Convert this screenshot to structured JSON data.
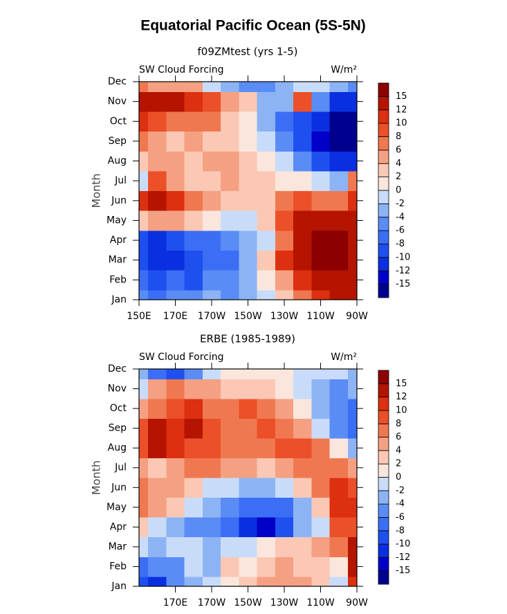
{
  "title": "Equatorial Pacific Ocean (5S-5N)",
  "chart_data": [
    {
      "type": "contour",
      "title": "f09ZMtest (yrs 1-5)",
      "left_label": "SW Cloud Forcing",
      "right_label": "W/m²",
      "y_label": "Month",
      "categories": [
        "Jan",
        "Feb",
        "Mar",
        "Apr",
        "May",
        "Jun",
        "Jul",
        "Aug",
        "Sep",
        "Oct",
        "Nov",
        "Dec"
      ],
      "x": [
        150,
        160,
        170,
        180,
        190,
        200,
        210,
        220,
        230,
        240,
        250,
        260,
        270
      ],
      "xlim": [
        150,
        270
      ],
      "xticks": [
        {
          "value": 150,
          "label": "150E"
        },
        {
          "value": 170,
          "label": "170E"
        },
        {
          "value": 190,
          "label": "170W"
        },
        {
          "value": 210,
          "label": "150W"
        },
        {
          "value": 230,
          "label": "130W"
        },
        {
          "value": 250,
          "label": "110W"
        },
        {
          "value": 270,
          "label": "90W"
        }
      ],
      "levels": [
        -15,
        -12,
        -10,
        -8,
        -6,
        -4,
        -2,
        0,
        2,
        4,
        6,
        8,
        10,
        12,
        15
      ],
      "colors": [
        "#00008f",
        "#0000c8",
        "#0a2fe0",
        "#1e50f0",
        "#3c6ef5",
        "#5a8cf5",
        "#8cb4f5",
        "#c8dcfa",
        "#fae6dc",
        "#fac8b4",
        "#f5a082",
        "#f07850",
        "#eb5028",
        "#dc3010",
        "#b41400",
        "#8c0000"
      ],
      "z": [
        [
          -6,
          -8,
          -6,
          -6,
          -4,
          -6,
          -4,
          -2,
          2,
          6,
          10,
          12,
          12
        ],
        [
          -8,
          -10,
          -8,
          -10,
          -6,
          -6,
          -4,
          0,
          4,
          10,
          12,
          14,
          14
        ],
        [
          -10,
          -12,
          -12,
          -10,
          -8,
          -8,
          -4,
          2,
          10,
          14,
          16,
          16,
          14
        ],
        [
          -10,
          -12,
          -10,
          -8,
          -8,
          -6,
          -4,
          -2,
          6,
          14,
          16,
          16,
          14
        ],
        [
          2,
          4,
          4,
          2,
          0,
          -2,
          -2,
          2,
          8,
          12,
          14,
          14,
          12
        ],
        [
          10,
          14,
          10,
          6,
          4,
          3,
          3,
          3,
          6,
          8,
          6,
          6,
          10
        ],
        [
          -2,
          8,
          4,
          3,
          3,
          4,
          3,
          2,
          1,
          0,
          -2,
          -4,
          6
        ],
        [
          3,
          5,
          4,
          3,
          4,
          4,
          2,
          0,
          -2,
          -6,
          -10,
          -12,
          -12
        ],
        [
          6,
          5,
          3,
          4,
          3,
          3,
          1,
          -2,
          -6,
          -10,
          -14,
          -16,
          -16
        ],
        [
          10,
          8,
          6,
          6,
          6,
          2,
          0,
          -4,
          -8,
          -10,
          -12,
          -16,
          -16
        ],
        [
          14,
          12,
          12,
          10,
          8,
          4,
          2,
          -4,
          -4,
          8,
          -6,
          -12,
          -12
        ],
        [
          6,
          4,
          4,
          4,
          -2,
          -4,
          -6,
          -6,
          -4,
          -2,
          -2,
          -4,
          -6
        ]
      ]
    },
    {
      "type": "contour",
      "title": "ERBE (1985-1989)",
      "left_label": "SW Cloud Forcing",
      "right_label": "W/m²",
      "y_label": "Month",
      "categories": [
        "Jan",
        "Feb",
        "Mar",
        "Apr",
        "May",
        "Jun",
        "Jul",
        "Aug",
        "Sep",
        "Oct",
        "Nov",
        "Dec"
      ],
      "x": [
        150,
        160,
        170,
        180,
        190,
        200,
        210,
        220,
        230,
        240,
        250,
        260,
        270
      ],
      "xlim": [
        150,
        270
      ],
      "xticks": [
        {
          "value": 170,
          "label": "170E"
        },
        {
          "value": 190,
          "label": "170W"
        },
        {
          "value": 210,
          "label": "150W"
        },
        {
          "value": 230,
          "label": "130W"
        },
        {
          "value": 250,
          "label": "110W"
        },
        {
          "value": 270,
          "label": "90W"
        }
      ],
      "levels": [
        -15,
        -12,
        -10,
        -8,
        -6,
        -4,
        -2,
        0,
        2,
        4,
        6,
        8,
        10,
        12,
        15
      ],
      "colors": [
        "#00008f",
        "#0000c8",
        "#0a2fe0",
        "#1e50f0",
        "#3c6ef5",
        "#5a8cf5",
        "#8cb4f5",
        "#c8dcfa",
        "#fae6dc",
        "#fac8b4",
        "#f5a082",
        "#f07850",
        "#eb5028",
        "#dc3010",
        "#b41400",
        "#8c0000"
      ],
      "z": [
        [
          -10,
          -12,
          -6,
          -4,
          -2,
          0,
          2,
          4,
          4,
          4,
          2,
          -2,
          10
        ],
        [
          -8,
          -6,
          -6,
          -2,
          -4,
          2,
          0,
          2,
          4,
          2,
          2,
          0,
          12
        ],
        [
          -2,
          -4,
          -2,
          -2,
          -4,
          -2,
          -2,
          0,
          2,
          2,
          4,
          6,
          14
        ],
        [
          2,
          -2,
          -4,
          -6,
          -6,
          -8,
          -12,
          -14,
          -10,
          -4,
          -2,
          8,
          8
        ],
        [
          6,
          4,
          2,
          -2,
          -4,
          -6,
          -8,
          -8,
          -8,
          -4,
          2,
          10,
          10
        ],
        [
          6,
          4,
          4,
          2,
          -2,
          -2,
          -4,
          -4,
          -2,
          2,
          6,
          10,
          8
        ],
        [
          4,
          2,
          4,
          6,
          6,
          4,
          4,
          2,
          4,
          6,
          6,
          6,
          4
        ],
        [
          8,
          12,
          10,
          8,
          8,
          6,
          6,
          6,
          8,
          8,
          6,
          0,
          -4
        ],
        [
          8,
          12,
          10,
          12,
          8,
          6,
          6,
          8,
          6,
          4,
          -2,
          -6,
          -8
        ],
        [
          4,
          6,
          8,
          10,
          6,
          6,
          8,
          6,
          4,
          0,
          -4,
          -6,
          -8
        ],
        [
          -2,
          4,
          6,
          4,
          4,
          2,
          2,
          2,
          0,
          -2,
          -4,
          -6,
          -4
        ],
        [
          -4,
          -8,
          -10,
          -6,
          -2,
          0,
          0,
          0,
          0,
          -2,
          -2,
          -2,
          -4
        ]
      ]
    }
  ]
}
